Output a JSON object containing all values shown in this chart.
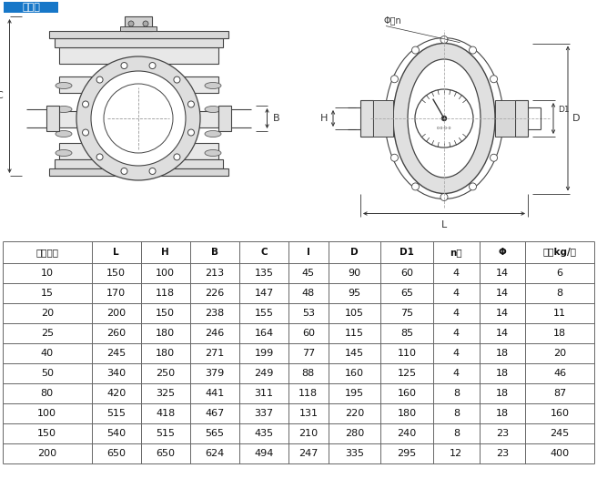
{
  "title": "铸铁型",
  "title_bg": "#1777c8",
  "title_color": "#ffffff",
  "table_headers": [
    "公称通径",
    "L",
    "H",
    "B",
    "C",
    "I",
    "D",
    "D1",
    "n个",
    "Φ",
    "重量kg/台"
  ],
  "table_data": [
    [
      10,
      150,
      100,
      213,
      135,
      45,
      90,
      60,
      4,
      14,
      6
    ],
    [
      15,
      170,
      118,
      226,
      147,
      48,
      95,
      65,
      4,
      14,
      8
    ],
    [
      20,
      200,
      150,
      238,
      155,
      53,
      105,
      75,
      4,
      14,
      11
    ],
    [
      25,
      260,
      180,
      246,
      164,
      60,
      115,
      85,
      4,
      14,
      18
    ],
    [
      40,
      245,
      180,
      271,
      199,
      77,
      145,
      110,
      4,
      18,
      20
    ],
    [
      50,
      340,
      250,
      379,
      249,
      88,
      160,
      125,
      4,
      18,
      46
    ],
    [
      80,
      420,
      325,
      441,
      311,
      118,
      195,
      160,
      8,
      18,
      87
    ],
    [
      100,
      515,
      418,
      467,
      337,
      131,
      220,
      180,
      8,
      18,
      160
    ],
    [
      150,
      540,
      515,
      565,
      435,
      210,
      280,
      240,
      8,
      23,
      245
    ],
    [
      200,
      650,
      650,
      624,
      494,
      247,
      335,
      295,
      12,
      23,
      400
    ]
  ],
  "bg_color": "#ffffff",
  "lc": "#444444",
  "dc": "#333333",
  "table_line": "#666666"
}
